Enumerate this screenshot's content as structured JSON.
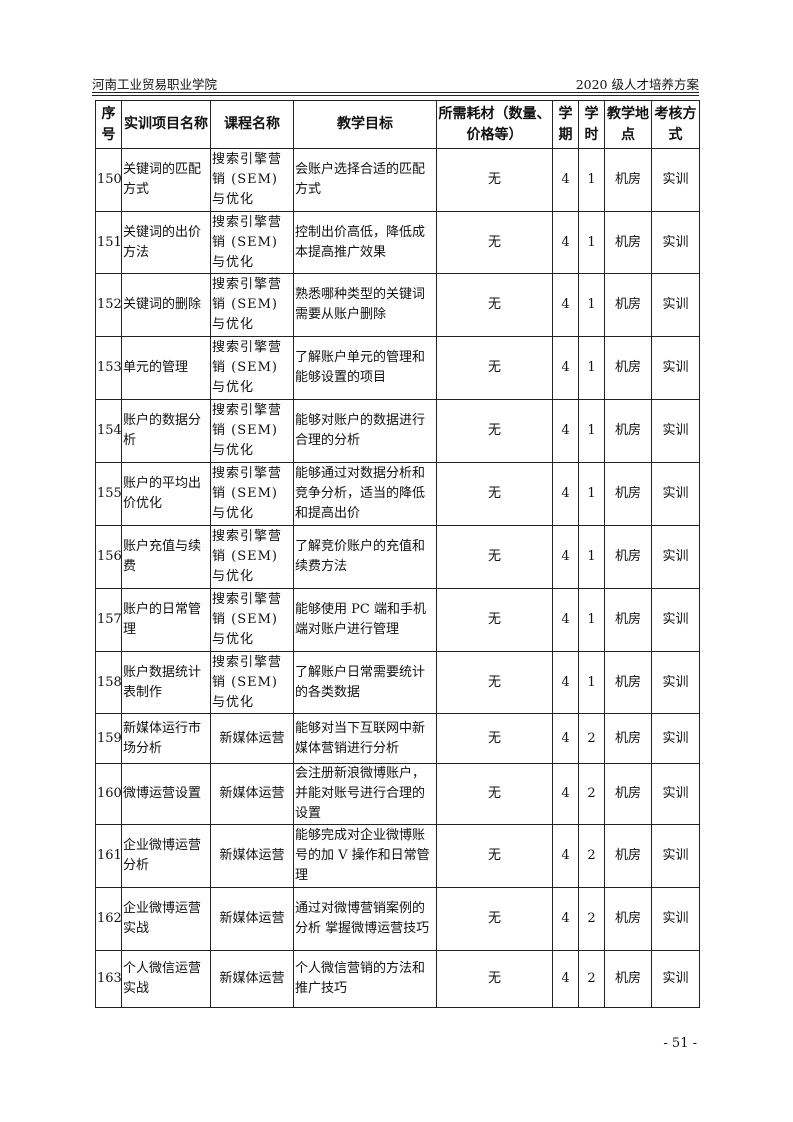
{
  "header": {
    "left": "河南工业贸易职业学院",
    "right": "2020 级人才培养方案"
  },
  "columns": [
    "序号",
    "实训项目名称",
    "课程名称",
    "教学目标",
    "所需耗材（数量、价格等）",
    "学期",
    "学时",
    "教学地点",
    "考核方式"
  ],
  "rows": [
    [
      "150",
      "关键词的匹配方式",
      "搜索引擎营销 (SEM) 与优化",
      "会账户选择合适的匹配方式",
      "无",
      "4",
      "1",
      "机房",
      "实训"
    ],
    [
      "151",
      "关键词的出价方法",
      "搜索引擎营销 (SEM) 与优化",
      "控制出价高低，降低成本提高推广效果",
      "无",
      "4",
      "1",
      "机房",
      "实训"
    ],
    [
      "152",
      "关键词的删除",
      "搜索引擎营销 (SEM) 与优化",
      "熟悉哪种类型的关键词需要从账户删除",
      "无",
      "4",
      "1",
      "机房",
      "实训"
    ],
    [
      "153",
      "单元的管理",
      "搜索引擎营销 (SEM) 与优化",
      "了解账户单元的管理和能够设置的项目",
      "无",
      "4",
      "1",
      "机房",
      "实训"
    ],
    [
      "154",
      "账户的数据分析",
      "搜索引擎营销 (SEM) 与优化",
      "能够对账户的数据进行合理的分析",
      "无",
      "4",
      "1",
      "机房",
      "实训"
    ],
    [
      "155",
      "账户的平均出价优化",
      "搜索引擎营销 (SEM) 与优化",
      "能够通过对数据分析和竞争分析，适当的降低和提高出价",
      "无",
      "4",
      "1",
      "机房",
      "实训"
    ],
    [
      "156",
      "账户充值与续费",
      "搜索引擎营销 (SEM) 与优化",
      "了解竞价账户的充值和续费方法",
      "无",
      "4",
      "1",
      "机房",
      "实训"
    ],
    [
      "157",
      "账户的日常管理",
      "搜索引擎营销 (SEM) 与优化",
      "能够使用 PC 端和手机端对账户进行管理",
      "无",
      "4",
      "1",
      "机房",
      "实训"
    ],
    [
      "158",
      "账户数据统计表制作",
      "搜索引擎营销 (SEM) 与优化",
      "了解账户日常需要统计的各类数据",
      "无",
      "4",
      "1",
      "机房",
      "实训"
    ],
    [
      "159",
      "新媒体运行市场分析",
      "新媒体运营",
      "能够对当下互联网中新媒体营销进行分析",
      "无",
      "4",
      "2",
      "机房",
      "实训"
    ],
    [
      "160",
      "微博运营设置",
      "新媒体运营",
      "会注册新浪微博账户，并能对账号进行合理的设置",
      "无",
      "4",
      "2",
      "机房",
      "实训"
    ],
    [
      "161",
      "企业微博运营分析",
      "新媒体运营",
      "能够完成对企业微博账号的加 V 操作和日常管理",
      "无",
      "4",
      "2",
      "机房",
      "实训"
    ],
    [
      "162",
      "企业微博运营实战",
      "新媒体运营",
      "通过对微博营销案例的分析 掌握微博运营技巧",
      "无",
      "4",
      "2",
      "机房",
      "实训"
    ],
    [
      "163",
      "个人微信运营实战",
      "新媒体运营",
      "个人微信营销的方法和推广技巧",
      "无",
      "4",
      "2",
      "机房",
      "实训"
    ]
  ],
  "footer": {
    "page": "- 51 -"
  }
}
